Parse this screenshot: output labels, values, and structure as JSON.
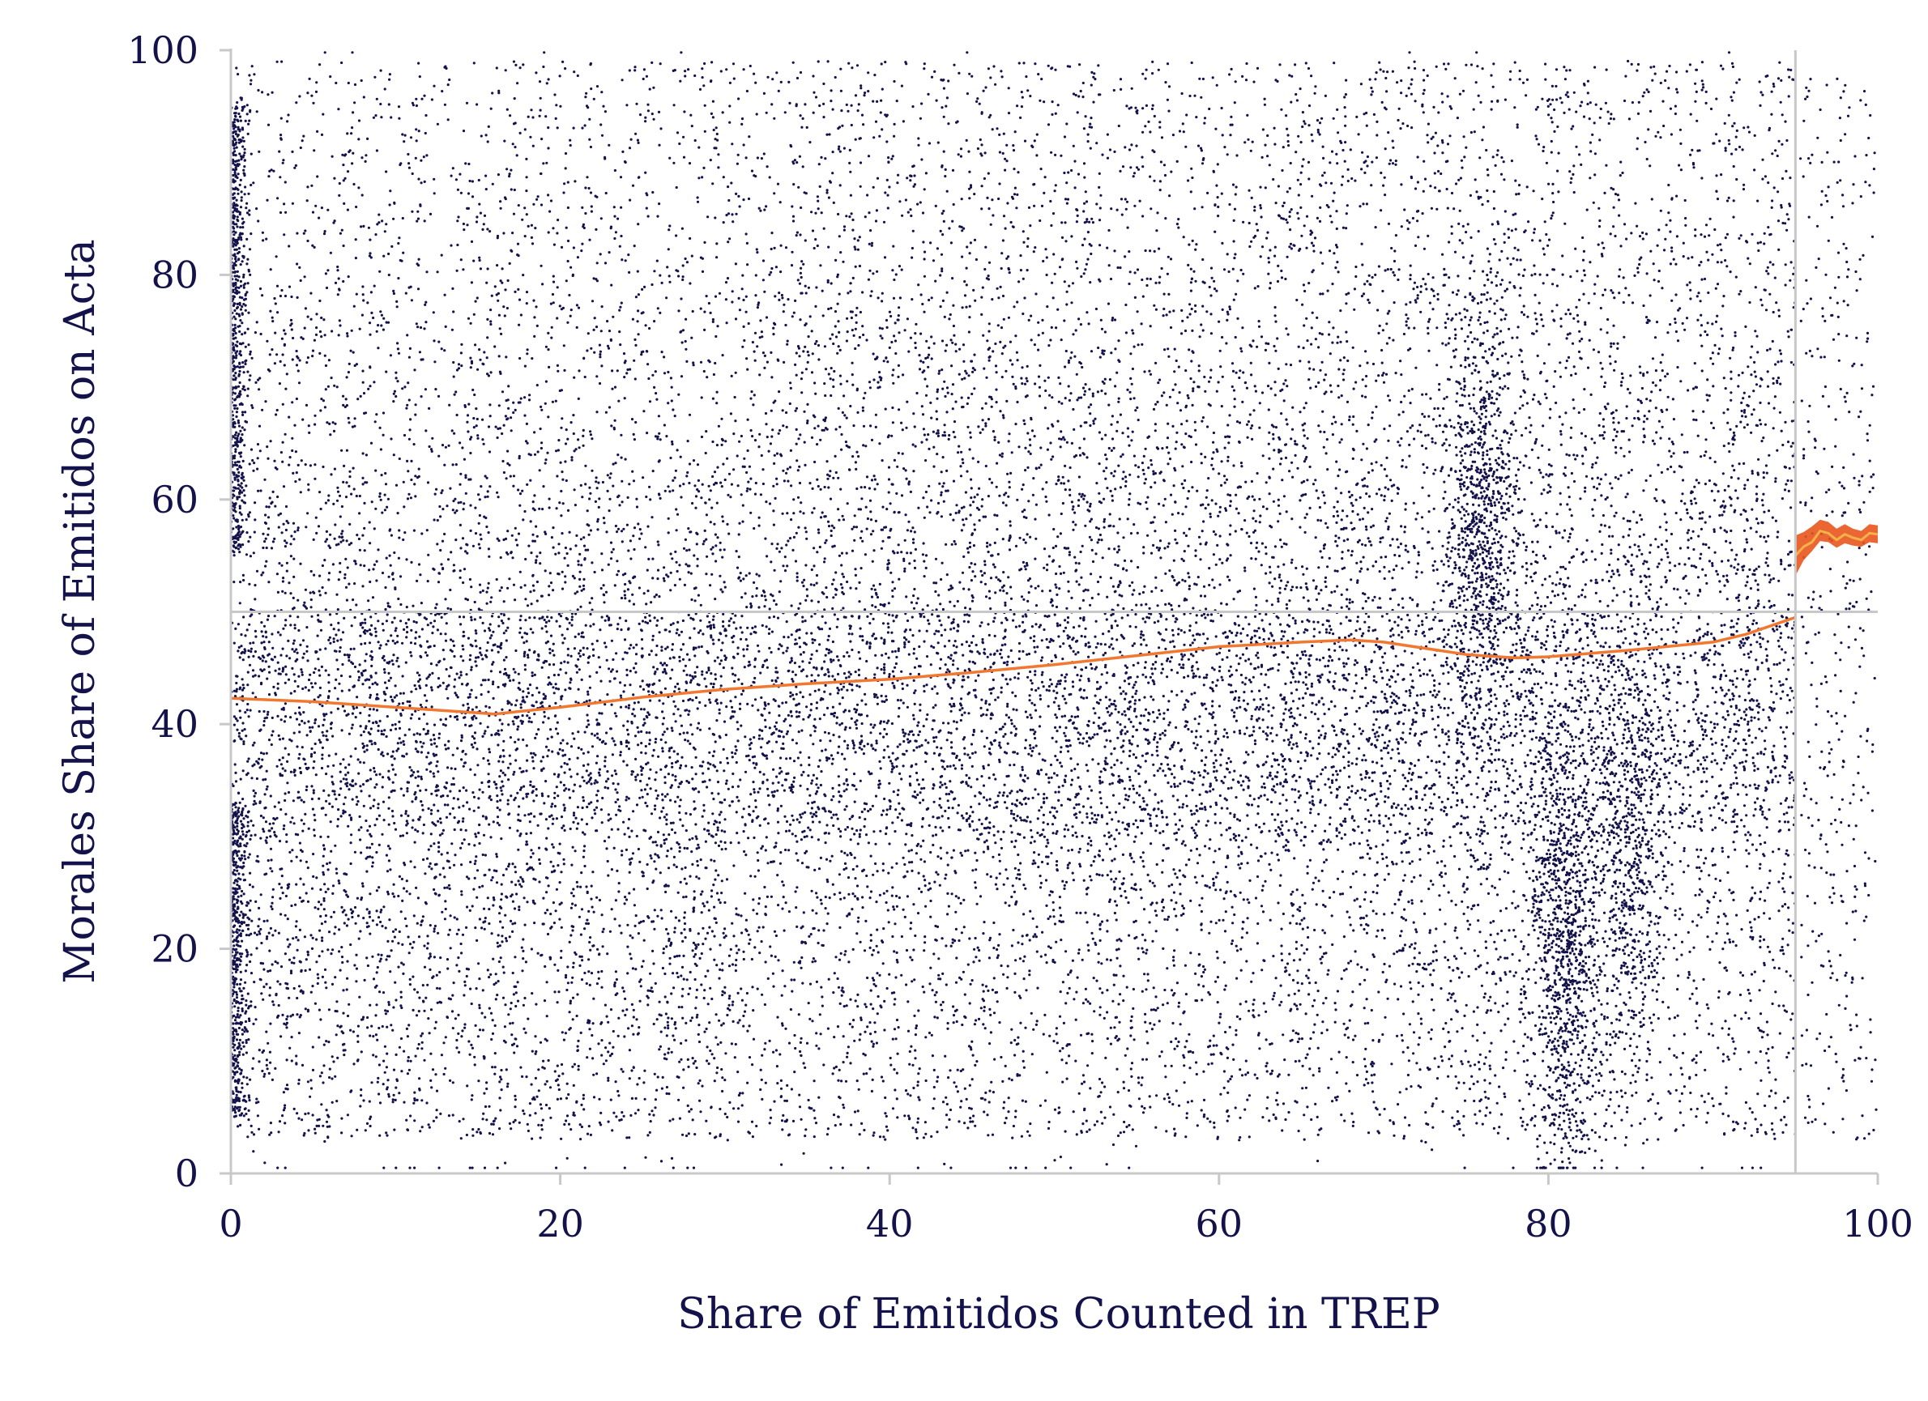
{
  "chart_data": {
    "type": "scatter",
    "title": "",
    "xlabel": "Share of Emitidos Counted in TREP",
    "ylabel": "Morales Share of Emitidos on Acta",
    "xlim": [
      0,
      100
    ],
    "ylim": [
      0,
      100
    ],
    "x_ticks": [
      "0",
      "20",
      "40",
      "60",
      "80",
      "100"
    ],
    "y_ticks": [
      "0",
      "20",
      "40",
      "60",
      "80",
      "100"
    ],
    "grid": false,
    "reference_lines": {
      "horizontal_y": 50,
      "vertical_x": 95
    },
    "colors": {
      "points": "#14124a",
      "fit_line": "#f07830",
      "confidence_band": "#e8561e",
      "reference_lines": "#c8c8c8",
      "axis": "#c8c8c8",
      "text": "#14124a"
    },
    "scatter_summary": {
      "approx_point_count": 25000,
      "density_notes": "dense over full x range 0-100; cluster near x=0 with y 60-95 and y 5-30; dense column near x=76 y 40-75; dense column near x=81 y 5-35; sparse area x 95-100"
    },
    "series": [
      {
        "type": "line",
        "x": [
          0,
          5,
          10,
          15,
          16,
          20,
          25,
          30,
          35,
          40,
          45,
          50,
          55,
          60,
          65,
          68,
          70,
          75,
          78,
          80,
          85,
          90,
          92,
          95
        ],
        "y": [
          42.3,
          42.0,
          41.5,
          41.0,
          40.9,
          41.5,
          42.4,
          43.1,
          43.6,
          44.0,
          44.6,
          45.3,
          46.1,
          46.9,
          47.3,
          47.5,
          47.3,
          46.2,
          45.9,
          46.0,
          46.6,
          47.3,
          48.0,
          49.5
        ]
      },
      {
        "type": "line",
        "x": [
          95,
          95.5,
          96,
          96.5,
          97,
          97.5,
          98,
          98.5,
          99,
          99.5,
          100
        ],
        "y": [
          55.0,
          55.8,
          56.2,
          57.2,
          57.0,
          56.4,
          56.9,
          56.6,
          56.4,
          57.0,
          56.9
        ]
      }
    ],
    "confidence_band": {
      "x": [
        95,
        95.5,
        96,
        96.5,
        97,
        97.5,
        98,
        98.5,
        99,
        99.5,
        100
      ],
      "lower": [
        53.2,
        54.6,
        55.4,
        56.3,
        56.2,
        55.7,
        56.1,
        55.9,
        55.8,
        56.2,
        56.1
      ],
      "upper": [
        56.8,
        57.1,
        57.6,
        58.2,
        58.0,
        57.4,
        57.8,
        57.4,
        57.2,
        57.8,
        57.7
      ]
    }
  }
}
